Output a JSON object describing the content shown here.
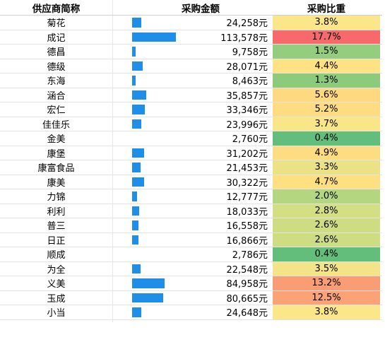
{
  "headers": {
    "name": "供应商简称",
    "amount": "采购金额",
    "ratio": "采购比重"
  },
  "max_amount": 113578,
  "rows": [
    {
      "name": "菊花",
      "amount": 24258,
      "amount_text": "24,258元",
      "ratio": 3.8,
      "ratio_text": "3.8%",
      "color": "#fbe68a"
    },
    {
      "name": "成记",
      "amount": 113578,
      "amount_text": "113,578元",
      "ratio": 17.7,
      "ratio_text": "17.7%",
      "color": "#f8696b"
    },
    {
      "name": "德昌",
      "amount": 9758,
      "amount_text": "9,758元",
      "ratio": 1.5,
      "ratio_text": "1.5%",
      "color": "#93cd7d"
    },
    {
      "name": "德级",
      "amount": 28071,
      "amount_text": "28,071元",
      "ratio": 4.4,
      "ratio_text": "4.4%",
      "color": "#fee284"
    },
    {
      "name": "东海",
      "amount": 8463,
      "amount_text": "8,463元",
      "ratio": 1.3,
      "ratio_text": "1.3%",
      "color": "#8ccb7c"
    },
    {
      "name": "涵合",
      "amount": 35857,
      "amount_text": "35,857元",
      "ratio": 5.6,
      "ratio_text": "5.6%",
      "color": "#fed980"
    },
    {
      "name": "宏仁",
      "amount": 33346,
      "amount_text": "33,346元",
      "ratio": 5.2,
      "ratio_text": "5.2%",
      "color": "#fedc81"
    },
    {
      "name": "佳佳乐",
      "amount": 23996,
      "amount_text": "23,996元",
      "ratio": 3.7,
      "ratio_text": "3.7%",
      "color": "#f8e688"
    },
    {
      "name": "金美",
      "amount": 2760,
      "amount_text": "2,760元",
      "ratio": 0.4,
      "ratio_text": "0.4%",
      "color": "#63be7b"
    },
    {
      "name": "康堡",
      "amount": 31202,
      "amount_text": "31,202元",
      "ratio": 4.9,
      "ratio_text": "4.9%",
      "color": "#fedd82"
    },
    {
      "name": "康富食品",
      "amount": 21453,
      "amount_text": "21,453元",
      "ratio": 3.3,
      "ratio_text": "3.3%",
      "color": "#ebe285"
    },
    {
      "name": "康美",
      "amount": 30322,
      "amount_text": "30,322元",
      "ratio": 4.7,
      "ratio_text": "4.7%",
      "color": "#fedf82"
    },
    {
      "name": "力锦",
      "amount": 12777,
      "amount_text": "12,777元",
      "ratio": 2.0,
      "ratio_text": "2.0%",
      "color": "#b4d680"
    },
    {
      "name": "利利",
      "amount": 18033,
      "amount_text": "18,033元",
      "ratio": 2.8,
      "ratio_text": "2.8%",
      "color": "#d4df83"
    },
    {
      "name": "普三",
      "amount": 16558,
      "amount_text": "16,558元",
      "ratio": 2.6,
      "ratio_text": "2.6%",
      "color": "#cedd82"
    },
    {
      "name": "日正",
      "amount": 16866,
      "amount_text": "16,866元",
      "ratio": 2.6,
      "ratio_text": "2.6%",
      "color": "#cedd82"
    },
    {
      "name": "顺成",
      "amount": 2786,
      "amount_text": "2,786元",
      "ratio": 0.4,
      "ratio_text": "0.4%",
      "color": "#63be7b"
    },
    {
      "name": "为全",
      "amount": 22548,
      "amount_text": "22,548元",
      "ratio": 3.5,
      "ratio_text": "3.5%",
      "color": "#f2e487"
    },
    {
      "name": "义美",
      "amount": 84958,
      "amount_text": "84,958元",
      "ratio": 13.2,
      "ratio_text": "13.2%",
      "color": "#fa9c74"
    },
    {
      "name": "玉成",
      "amount": 80665,
      "amount_text": "80,665元",
      "ratio": 12.5,
      "ratio_text": "12.5%",
      "color": "#fba276"
    },
    {
      "name": "小当",
      "amount": 24648,
      "amount_text": "24,648元",
      "ratio": 3.8,
      "ratio_text": "3.8%",
      "color": "#fbe68a"
    }
  ]
}
